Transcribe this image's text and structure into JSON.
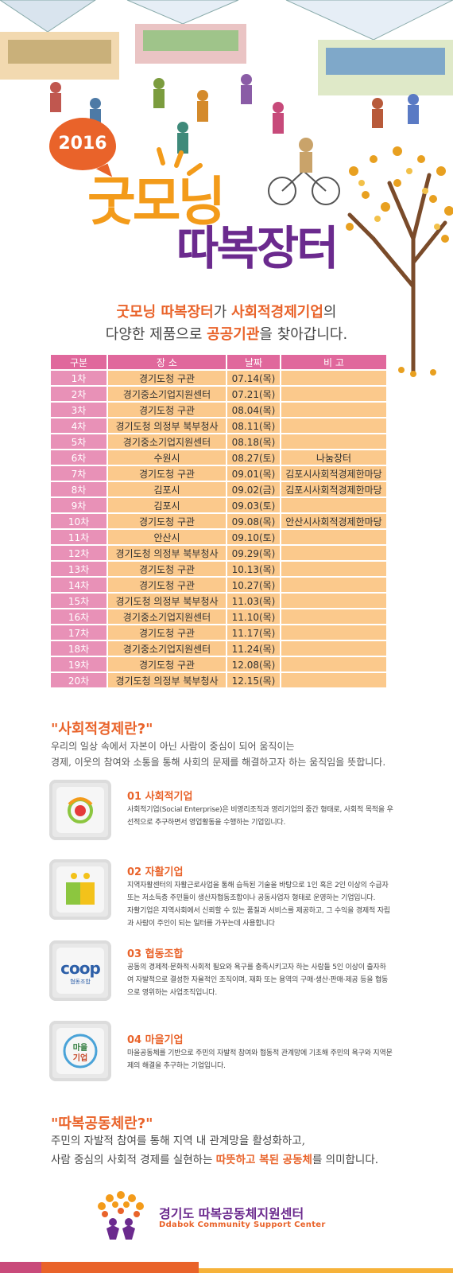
{
  "hero": {
    "year": "2016",
    "logo_line1": "굿모닝",
    "logo_line2": "따복장터"
  },
  "intro": {
    "l1_a": "굿모닝 따복장터",
    "l1_b": "가 ",
    "l1_c": "사회적경제기업",
    "l1_d": "의",
    "l2_a": "다양한 제품으로 ",
    "l2_b": "공공기관",
    "l2_c": "을 찾아갑니다."
  },
  "schedule": {
    "headers": [
      "구분",
      "장  소",
      "날짜",
      "비 고"
    ],
    "rows": [
      {
        "no": "1차",
        "place": "경기도청 구관",
        "date": "07.14(목)",
        "note": ""
      },
      {
        "no": "2차",
        "place": "경기중소기업지원센터",
        "date": "07.21(목)",
        "note": ""
      },
      {
        "no": "3차",
        "place": "경기도청 구관",
        "date": "08.04(목)",
        "note": ""
      },
      {
        "no": "4차",
        "place": "경기도청 의정부 북부청사",
        "date": "08.11(목)",
        "note": ""
      },
      {
        "no": "5차",
        "place": "경기중소기업지원센터",
        "date": "08.18(목)",
        "note": ""
      },
      {
        "no": "6차",
        "place": "수원시",
        "date": "08.27(토)",
        "note": "나눔장터"
      },
      {
        "no": "7차",
        "place": "경기도청 구관",
        "date": "09.01(목)",
        "note": "김포시사회적경제한마당"
      },
      {
        "no": "8차",
        "place": "김포시",
        "date": "09.02(금)",
        "note": "김포시사회적경제한마당"
      },
      {
        "no": "9차",
        "place": "김포시",
        "date": "09.03(토)",
        "note": ""
      },
      {
        "no": "10차",
        "place": "경기도청 구관",
        "date": "09.08(목)",
        "note": "안산시사회적경제한마당"
      },
      {
        "no": "11차",
        "place": "안산시",
        "date": "09.10(토)",
        "note": ""
      },
      {
        "no": "12차",
        "place": "경기도청 의정부 북부청사",
        "date": "09.29(목)",
        "note": ""
      },
      {
        "no": "13차",
        "place": "경기도청 구관",
        "date": "10.13(목)",
        "note": ""
      },
      {
        "no": "14차",
        "place": "경기도청 구관",
        "date": "10.27(목)",
        "note": ""
      },
      {
        "no": "15차",
        "place": "경기도청 의정부 북부청사",
        "date": "11.03(목)",
        "note": ""
      },
      {
        "no": "16차",
        "place": "경기중소기업지원센터",
        "date": "11.10(목)",
        "note": ""
      },
      {
        "no": "17차",
        "place": "경기도청 구관",
        "date": "11.17(목)",
        "note": ""
      },
      {
        "no": "18차",
        "place": "경기중소기업지원센터",
        "date": "11.24(목)",
        "note": ""
      },
      {
        "no": "19차",
        "place": "경기도청 구관",
        "date": "12.08(목)",
        "note": ""
      },
      {
        "no": "20차",
        "place": "경기도청 의정부 북부청사",
        "date": "12.15(목)",
        "note": ""
      }
    ]
  },
  "social_economy": {
    "title": "\"사회적경제란?\"",
    "desc1": "우리의 일상 속에서 자본이 아닌 사람이 중심이 되어 움직이는",
    "desc2": "경제, 이웃의 참여와 소통을 통해 사회의 문제를 해결하고자 하는 움직임을 뜻합니다.",
    "items": [
      {
        "title": "01 사회적기업",
        "icon": "social-enterprise-logo",
        "lines": [
          "사회적기업(Social Enterprise)은 비영리조직과 영리기업의 중간 형태로, 사회적 목적을 우",
          "선적으로 추구하면서 영업활동을 수행하는 기업입니다."
        ]
      },
      {
        "title": "02 자활기업",
        "icon": "self-sufficiency-logo",
        "lines": [
          "지역자활센터의 자활근로사업을 통해 습득된 기술을 바탕으로 1인 혹은 2인 이상의 수급자",
          "또는 저소득층 주민들이 생산자협동조합이나 공동사업자 형태로 운영하는 기업입니다.",
          "자활기업은 지역사회에서 신뢰할 수 있는 품질과 서비스를 제공하고, 그 수익을 경제적 자립",
          "과 사람이 주인이 되는 일터를 가꾸는데 사용합니다"
        ]
      },
      {
        "title": "03 협동조합",
        "icon": "coop-logo",
        "logo_text": "coop",
        "logo_sub": "협동조합",
        "lines": [
          "공동의 경제적·문화적·사회적 필요와 욕구를 충족시키고자 하는 사람들 5인 이상이 출자하",
          "여  자발적으로 결성한 자율적인 조직이며, 재화 또는 용역의 구매·생산·판매·제공 등을 협동",
          "으로 영위하는 사업조직입니다."
        ]
      },
      {
        "title": "04 마을기업",
        "icon": "village-enterprise-logo",
        "logo_text1": "마을",
        "logo_text2": "기업",
        "lines": [
          "마을공동체를 기반으로 주민의 자발적 참여와 협동적 관계망에 기초해 주민의 욕구와 지역문",
          "제의 해결을 추구하는 기업입니다."
        ]
      }
    ]
  },
  "ddabok": {
    "title": "\"따복공동체란?\"",
    "line1": "주민의 자발적 참여를 통해 지역 내 관계망을 활성화하고,",
    "line2_a": "사람 중심의 사회적 경제를 실현하는 ",
    "line2_b": "따뜻하고 복된 공동체",
    "line2_c": "를 의미합니다."
  },
  "footer": {
    "org_ko": "경기도 따복공동체지원센터",
    "org_en": "Ddabok Community Support Center"
  },
  "colors": {
    "accent_orange": "#e9632a",
    "header_pink": "#e0689c",
    "row_pink": "#e891b7",
    "row_peach": "#fbc98c",
    "brand_purple": "#6b2a8e",
    "logo_yellow": "#f39b1a"
  }
}
